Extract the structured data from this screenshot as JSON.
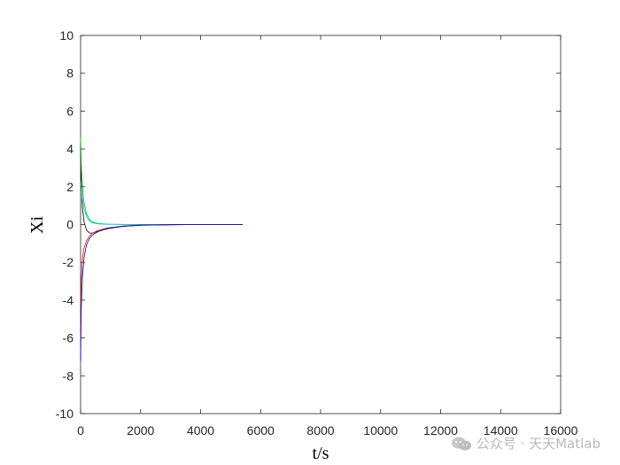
{
  "chart_data": {
    "type": "line",
    "xlabel": "t/s",
    "ylabel": "Xi",
    "xlim": [
      0,
      16000
    ],
    "ylim": [
      -10,
      10
    ],
    "xticks": [
      0,
      2000,
      4000,
      6000,
      8000,
      10000,
      12000,
      14000,
      16000
    ],
    "yticks": [
      -10,
      -8,
      -6,
      -4,
      -2,
      0,
      2,
      4,
      6,
      8,
      10
    ],
    "grid": false,
    "box": true,
    "series": [
      {
        "color": "#000000",
        "x": [
          0,
          20,
          60,
          120,
          200,
          300,
          400,
          600,
          900,
          1400,
          2000,
          3000,
          4000,
          5400
        ],
        "y": [
          4.3,
          2.5,
          0.9,
          0.1,
          -0.3,
          -0.45,
          -0.45,
          -0.35,
          -0.22,
          -0.1,
          -0.04,
          -0.01,
          0,
          0
        ]
      },
      {
        "color": "#00c000",
        "x": [
          0,
          20,
          60,
          120,
          200,
          300,
          400,
          600,
          900,
          1400,
          2000,
          3000,
          4000,
          5400
        ],
        "y": [
          4.6,
          3.2,
          2.0,
          1.1,
          0.55,
          0.25,
          0.12,
          0.05,
          0.02,
          0.01,
          0,
          0,
          0,
          0
        ]
      },
      {
        "color": "#00d8d8",
        "x": [
          0,
          20,
          60,
          120,
          200,
          300,
          400,
          600,
          900,
          1400,
          2000,
          3000,
          4000,
          5400
        ],
        "y": [
          2.3,
          2.1,
          1.4,
          0.8,
          0.4,
          0.18,
          0.08,
          0.03,
          0.01,
          0,
          0,
          0,
          0,
          0
        ]
      },
      {
        "color": "#ff0000",
        "x": [
          0,
          20,
          60,
          120,
          200,
          300,
          400,
          600,
          900,
          1400,
          2000,
          3000,
          4000,
          5400
        ],
        "y": [
          -6.0,
          -3.0,
          -1.8,
          -1.2,
          -0.85,
          -0.6,
          -0.45,
          -0.3,
          -0.18,
          -0.08,
          -0.03,
          -0.01,
          0,
          0
        ]
      },
      {
        "color": "#0000cc",
        "x": [
          0,
          20,
          60,
          120,
          200,
          300,
          400,
          600,
          900,
          1400,
          2000,
          3000,
          4000,
          5400
        ],
        "y": [
          -7.2,
          -4.5,
          -2.8,
          -1.7,
          -1.05,
          -0.72,
          -0.55,
          -0.36,
          -0.2,
          -0.09,
          -0.03,
          -0.01,
          0,
          0
        ]
      }
    ]
  },
  "watermark": {
    "text": "公众号 · 天天Matlab",
    "icon": "wechat-icon"
  }
}
